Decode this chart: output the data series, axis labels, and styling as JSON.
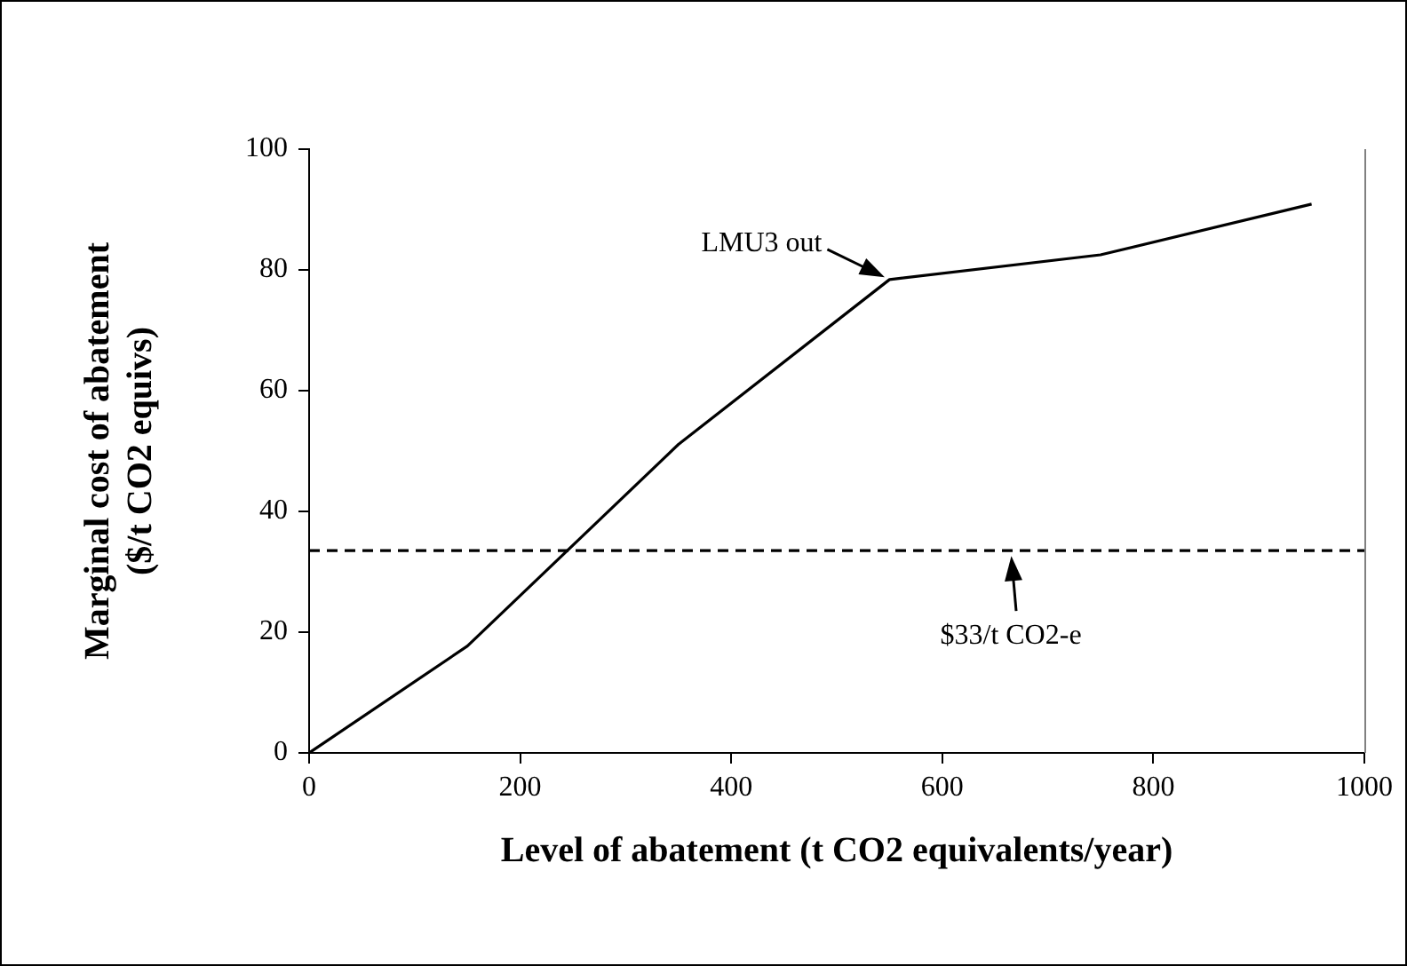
{
  "chart_data": {
    "type": "line",
    "xlabel": "Level of abatement (t CO2 equivalents/year)",
    "ylabel": "Marginal cost of abatement\n($/t CO2 equivs)",
    "x": [
      0,
      150,
      350,
      550,
      750,
      950
    ],
    "series": [
      {
        "color": "#000000",
        "values": [
          0,
          17.7,
          51.1,
          78.4,
          82.5,
          90.9
        ]
      }
    ],
    "xlim": [
      0,
      1000
    ],
    "xticks": [
      0,
      200,
      400,
      600,
      800,
      1000
    ],
    "ylim": [
      0,
      100
    ],
    "yticks": [
      0,
      20,
      40,
      60,
      80,
      100
    ],
    "grid": false,
    "legend": false,
    "marker": "none",
    "line_style": "solid",
    "ref_lines": [
      {
        "axis": "y",
        "value": 33.5,
        "color": "#000000",
        "line_style": "dashed"
      }
    ],
    "annotations": [
      {
        "text": "LMU3 out",
        "x": 550,
        "y": 78.4
      },
      {
        "text": "$33/t CO2-e",
        "x": 665,
        "y": 33.5
      }
    ]
  }
}
